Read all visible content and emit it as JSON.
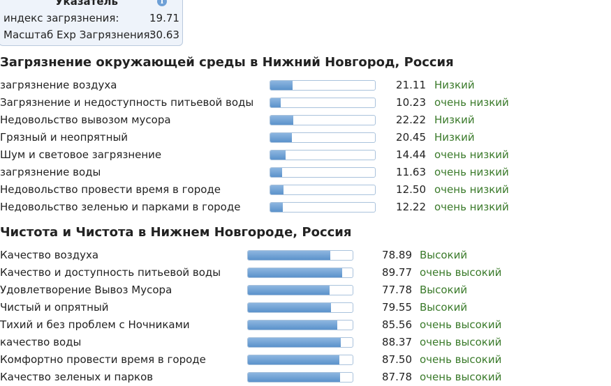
{
  "index_box": {
    "title": "Указатель",
    "rows": [
      {
        "label": "индекс загрязнения:",
        "value": "19.71"
      },
      {
        "label": "Масштаб Exp Загрязнения:",
        "value": "30.63"
      }
    ]
  },
  "pollution": {
    "title": "Загрязнение окружающей среды в Нижний Новгород, Россия",
    "items": [
      {
        "label": "загрязнение воздуха",
        "value": "21.11",
        "level": "Низкий",
        "fill": 21.11
      },
      {
        "label": "Загрязнение и недоступность питьевой воды",
        "value": "10.23",
        "level": "очень низкий",
        "fill": 10.23
      },
      {
        "label": "Недовольство вывозом мусора",
        "value": "22.22",
        "level": "Низкий",
        "fill": 22.22
      },
      {
        "label": "Грязный и неопрятный",
        "value": "20.45",
        "level": "Низкий",
        "fill": 20.45
      },
      {
        "label": "Шум и световое загрязнение",
        "value": "14.44",
        "level": "очень низкий",
        "fill": 14.44
      },
      {
        "label": "загрязнение воды",
        "value": "11.63",
        "level": "очень низкий",
        "fill": 11.63
      },
      {
        "label": "Недовольство провести время в городе",
        "value": "12.50",
        "level": "очень низкий",
        "fill": 12.5
      },
      {
        "label": "Недовольство зеленью и парками в городе",
        "value": "12.22",
        "level": "очень низкий",
        "fill": 12.22
      }
    ]
  },
  "purity": {
    "title": "Чистота и Чистота в Нижнем Новгороде, Россия",
    "items": [
      {
        "label": "Качество воздуха",
        "value": "78.89",
        "level": "Высокий",
        "fill": 78.89
      },
      {
        "label": "Качество и доступность питьевой воды",
        "value": "89.77",
        "level": "очень высокий",
        "fill": 89.77
      },
      {
        "label": "Удовлетворение Вывоз Мусора",
        "value": "77.78",
        "level": "Высокий",
        "fill": 77.78
      },
      {
        "label": "Чистый и опрятный",
        "value": "79.55",
        "level": "Высокий",
        "fill": 79.55
      },
      {
        "label": "Тихий и без проблем с Ночниками",
        "value": "85.56",
        "level": "очень высокий",
        "fill": 85.56
      },
      {
        "label": "качество воды",
        "value": "88.37",
        "level": "очень высокий",
        "fill": 88.37
      },
      {
        "label": "Комфортно провести время в городе",
        "value": "87.50",
        "level": "очень высокий",
        "fill": 87.5
      },
      {
        "label": "Качество зеленых и парков",
        "value": "87.78",
        "level": "очень высокий",
        "fill": 87.78
      }
    ]
  },
  "icons": {
    "info": "info-icon"
  },
  "colors": {
    "level_text": "#3a7a2a",
    "bar_fill": "#5b92cb",
    "bar_border": "#a9c2dc"
  }
}
